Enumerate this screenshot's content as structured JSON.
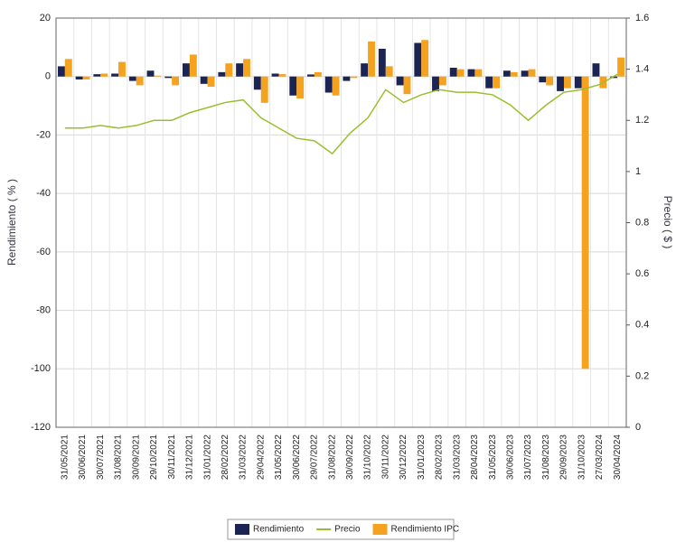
{
  "chart_data": {
    "type": "bar",
    "y_label": "Rendimiento ( % )",
    "y2_label": "Precio ( $ )",
    "categories": [
      "31/05/2021",
      "30/06/2021",
      "30/07/2021",
      "31/08/2021",
      "30/09/2021",
      "29/10/2021",
      "30/11/2021",
      "31/12/2021",
      "31/01/2022",
      "28/02/2022",
      "31/03/2022",
      "29/04/2022",
      "31/05/2022",
      "30/06/2022",
      "29/07/2022",
      "31/08/2022",
      "30/09/2022",
      "31/10/2022",
      "30/11/2022",
      "30/12/2022",
      "31/01/2023",
      "28/02/2023",
      "31/03/2023",
      "28/04/2023",
      "31/05/2023",
      "30/06/2023",
      "31/07/2023",
      "31/08/2023",
      "29/09/2023",
      "31/10/2023",
      "27/03/2024",
      "30/04/2024"
    ],
    "series": [
      {
        "name": "Rendimiento",
        "type": "bar",
        "color": "#1b2452",
        "values": [
          3.5,
          -1,
          0.8,
          1,
          -1.5,
          2,
          -0.5,
          4.5,
          -2.5,
          1.5,
          4.5,
          -4.5,
          1,
          -6.5,
          0.7,
          -5.5,
          -1.5,
          4.5,
          9.5,
          -3,
          11.5,
          -5,
          3,
          2.5,
          -4,
          2,
          2,
          -2,
          -5,
          -4,
          4.5,
          -0.5
        ]
      },
      {
        "name": "Precio",
        "type": "line",
        "axis": "y2",
        "color": "#9abf2e",
        "values": [
          1.17,
          1.17,
          1.18,
          1.17,
          1.18,
          1.2,
          1.2,
          1.23,
          1.25,
          1.27,
          1.28,
          1.21,
          1.17,
          1.13,
          1.12,
          1.07,
          1.15,
          1.21,
          1.32,
          1.27,
          1.3,
          1.32,
          1.31,
          1.31,
          1.3,
          1.26,
          1.2,
          1.26,
          1.31,
          1.32,
          1.34,
          1.38
        ]
      },
      {
        "name": "Rendimiento IPC",
        "type": "bar",
        "color": "#f5a21f",
        "values": [
          6,
          -1,
          1,
          5,
          -3,
          0.3,
          -3,
          7.5,
          -3.5,
          4.5,
          6,
          -9,
          0.8,
          -7.5,
          1.5,
          -6.5,
          -0.5,
          12,
          3.5,
          -6,
          12.5,
          -3,
          2.5,
          2.5,
          -4,
          1.5,
          2.5,
          -3,
          -4,
          -100,
          -4,
          6.5
        ]
      }
    ],
    "ylim": [
      -120,
      20
    ],
    "yticks": [
      -120,
      -100,
      -80,
      -60,
      -40,
      -20,
      0,
      20
    ],
    "y2lim": [
      0,
      1.6
    ],
    "y2ticks": [
      0,
      0.2,
      0.4,
      0.6,
      0.8,
      1,
      1.2,
      1.4,
      1.6
    ],
    "grid": true,
    "legend": "bottom"
  }
}
